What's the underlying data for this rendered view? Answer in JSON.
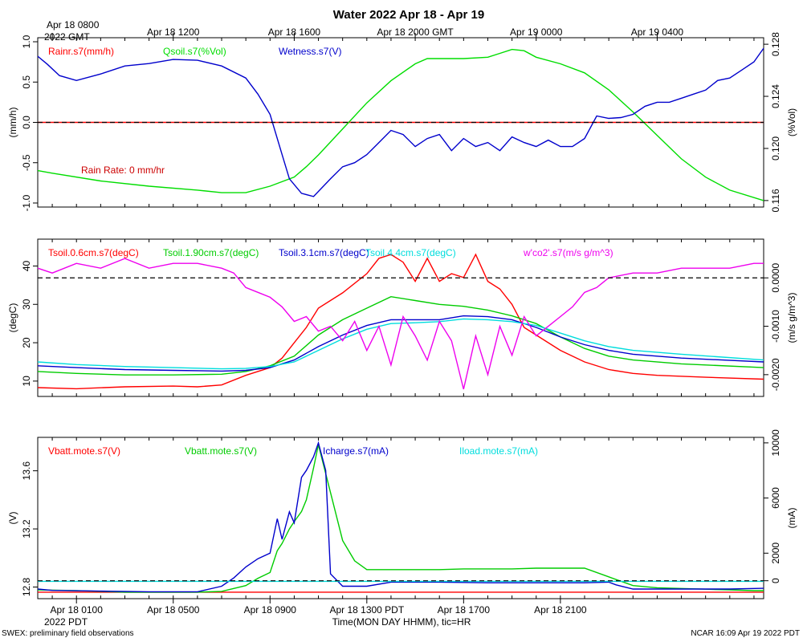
{
  "chart_data": {
    "type": "line",
    "title": "Water 2022 Apr 18 - Apr 19",
    "x_unit": "hours since Apr 18 0000 PDT",
    "x_range": [
      -0.6,
      29.4
    ],
    "top_axis": {
      "first_label": [
        "Apr 18 0800",
        "2022 GMT"
      ],
      "ticks": [
        {
          "x": 0,
          "label": ""
        },
        {
          "x": 5,
          "label": "Apr 18 1200"
        },
        {
          "x": 10,
          "label": "Apr 18 1600"
        },
        {
          "x": 15,
          "label": "Apr 18 2000 GMT"
        },
        {
          "x": 20,
          "label": "Apr 19 0000"
        },
        {
          "x": 25,
          "label": "Apr 19 0400"
        }
      ]
    },
    "bottom_axis": {
      "label": "Time(MON DAY HHMM), tic=HR",
      "sub_label": "2022 PDT",
      "ticks": [
        {
          "x": 1,
          "label": "Apr 18 0100"
        },
        {
          "x": 5,
          "label": "Apr 18 0500"
        },
        {
          "x": 9,
          "label": "Apr 18 0900"
        },
        {
          "x": 13,
          "label": "Apr 18 1300 PDT"
        },
        {
          "x": 17,
          "label": "Apr 18 1700"
        },
        {
          "x": 21,
          "label": "Apr 18 2100"
        }
      ]
    },
    "panels": [
      {
        "id": "water",
        "left_axis": {
          "label": "(mm/h)",
          "range": [
            -1.05,
            1.05
          ],
          "ticks": [
            -1.0,
            -0.5,
            0.0,
            0.5,
            1.0
          ],
          "tick_labels": [
            "-1.0",
            "-0.5",
            "0.0",
            "0.5",
            "1.0"
          ]
        },
        "right_axis": {
          "label": "(%Vol)",
          "range": [
            0.1155,
            0.1285
          ],
          "ticks": [
            0.116,
            0.12,
            0.124,
            0.128
          ],
          "tick_labels": [
            "0.116",
            "0.120",
            "0.124",
            "0.128"
          ]
        },
        "zero_line": 0.0,
        "annotation": "Rain Rate: 0 mm/hr",
        "series": [
          {
            "name": "Rainr.s7(mm/h)",
            "color": "#ff0000",
            "axis": "left",
            "x": [
              -0.6,
              29.4
            ],
            "y": [
              0,
              0
            ]
          },
          {
            "name": "Qsoil.s7(%Vol)",
            "color": "#00dd00",
            "axis": "right",
            "x": [
              -0.6,
              0,
              2,
              4,
              6,
              7,
              8,
              9,
              10,
              10.5,
              11,
              12,
              13,
              14,
              15,
              15.5,
              16,
              17,
              18,
              18.5,
              19,
              19.5,
              20,
              21,
              22,
              23,
              24,
              25,
              26,
              27,
              28,
              29.4
            ],
            "y": [
              0.1183,
              0.1181,
              0.1175,
              0.1171,
              0.1168,
              0.1166,
              0.1166,
              0.1171,
              0.1178,
              0.1186,
              0.1195,
              0.1215,
              0.1235,
              0.1252,
              0.1265,
              0.1269,
              0.1269,
              0.1269,
              0.127,
              0.1273,
              0.1276,
              0.1275,
              0.127,
              0.1265,
              0.1258,
              0.1245,
              0.1228,
              0.121,
              0.1192,
              0.1178,
              0.1168,
              0.116
            ]
          },
          {
            "name": "Wetness.s7(V)",
            "color": "#0000cc",
            "axis": "left",
            "x": [
              -0.6,
              -0.2,
              0.3,
              1,
              2,
              3,
              4,
              5,
              6,
              7,
              8,
              8.5,
              9,
              9.5,
              9.8,
              10.3,
              10.8,
              11.5,
              12,
              12.5,
              13,
              13.5,
              14,
              14.5,
              15,
              15.5,
              16,
              16.5,
              17,
              17.5,
              18,
              18.5,
              19,
              19.5,
              20,
              20.5,
              21,
              21.5,
              22,
              22.5,
              23,
              23.5,
              24,
              24.5,
              25,
              25.5,
              26,
              26.5,
              27,
              27.5,
              28,
              28.5,
              29,
              29.4
            ],
            "y": [
              0.82,
              0.72,
              0.58,
              0.52,
              0.6,
              0.7,
              0.73,
              0.78,
              0.77,
              0.7,
              0.55,
              0.35,
              0.1,
              -0.4,
              -0.7,
              -0.88,
              -0.92,
              -0.7,
              -0.55,
              -0.5,
              -0.4,
              -0.25,
              -0.1,
              -0.15,
              -0.3,
              -0.2,
              -0.15,
              -0.35,
              -0.2,
              -0.3,
              -0.25,
              -0.35,
              -0.18,
              -0.25,
              -0.3,
              -0.22,
              -0.3,
              -0.3,
              -0.2,
              0.08,
              0.05,
              0.06,
              0.1,
              0.2,
              0.25,
              0.25,
              0.3,
              0.35,
              0.4,
              0.52,
              0.55,
              0.65,
              0.75,
              0.92
            ]
          }
        ]
      },
      {
        "id": "tsoil",
        "left_axis": {
          "label": "(degC)",
          "range": [
            6,
            47
          ],
          "ticks": [
            10,
            20,
            30,
            40
          ],
          "tick_labels": [
            "10",
            "20",
            "30",
            "40"
          ]
        },
        "right_axis": {
          "label": "(m/s g/m^3)",
          "range": [
            -0.00245,
            0.0008
          ],
          "ticks": [
            -0.002,
            -0.001,
            0.0
          ],
          "tick_labels": [
            "-0.0020",
            "-0.0010",
            "0.0000"
          ]
        },
        "zero_line": 0.0,
        "series": [
          {
            "name": "Tsoil.0.6cm.s7(degC)",
            "color": "#ff0000",
            "axis": "left",
            "x": [
              -0.6,
              1,
              3,
              5,
              6,
              7,
              8,
              9,
              9.5,
              10,
              10.5,
              11,
              12,
              13,
              13.5,
              14,
              14.5,
              15,
              15.5,
              16,
              16.5,
              17,
              17.5,
              18,
              18.5,
              19,
              19.5,
              20,
              21,
              22,
              23,
              24,
              25,
              27,
              29.4
            ],
            "y": [
              8.3,
              8.0,
              8.5,
              8.7,
              8.5,
              9.0,
              11.5,
              13.5,
              16,
              20,
              24,
              29,
              33,
              38,
              42,
              43,
              41,
              36,
              42,
              36,
              38,
              37,
              43,
              36,
              34,
              30,
              24,
              22,
              18,
              15,
              13,
              12,
              11.5,
              11.0,
              10.5
            ]
          },
          {
            "name": "Tsoil.1.90cm.s7(degC)",
            "color": "#00cc00",
            "axis": "left",
            "x": [
              -0.6,
              1,
              3,
              5,
              7,
              8,
              9,
              10,
              11,
              12,
              13,
              14,
              15,
              16,
              17,
              18,
              19,
              20,
              21,
              22,
              23,
              24,
              26,
              29.4
            ],
            "y": [
              12.5,
              12,
              11.6,
              11.6,
              11.8,
              12.5,
              14,
              16.5,
              22,
              26,
              29,
              32,
              31,
              30,
              29.5,
              28.5,
              27,
              25,
              21.5,
              18.5,
              16.5,
              15.5,
              14.5,
              13.5
            ]
          },
          {
            "name": "Tsoil.3.1cm.s7(degC)",
            "color": "#0000cc",
            "axis": "left",
            "x": [
              -0.6,
              1,
              3,
              5,
              7,
              8,
              9,
              10,
              11,
              12,
              13,
              14,
              15,
              16,
              17,
              18,
              19,
              20,
              21,
              22,
              23,
              24,
              26,
              29.4
            ],
            "y": [
              14,
              13.5,
              13,
              12.8,
              12.6,
              12.8,
              13.5,
              15.5,
              19,
              22,
              24.5,
              26,
              26,
              26,
              27,
              26.8,
              26,
              24,
              21.5,
              19.5,
              18,
              17,
              16,
              15
            ]
          },
          {
            "name": "Tsoil.4.4cm.s7(degC)",
            "color": "#00dddd",
            "axis": "left",
            "x": [
              -0.6,
              1,
              3,
              5,
              7,
              8,
              9,
              10,
              11,
              12,
              13,
              14,
              15,
              16,
              17,
              18,
              19,
              20,
              21,
              22,
              23,
              24,
              26,
              29.4
            ],
            "y": [
              15,
              14.3,
              13.8,
              13.5,
              13.2,
              13.3,
              13.8,
              15,
              18,
              21,
              23.5,
              25,
              25.2,
              25.5,
              26.2,
              26,
              25.5,
              24.5,
              22.5,
              20.5,
              19,
              18,
              17,
              15.5
            ]
          },
          {
            "name": "w'co2'.s7(m/s g/m^3)",
            "color": "#ee00ee",
            "axis": "right",
            "x": [
              -0.6,
              0,
              1,
              2,
              3,
              4,
              5,
              6,
              7,
              7.5,
              8,
              8.5,
              9,
              9.5,
              10,
              10.5,
              11,
              11.5,
              12,
              12.5,
              13,
              13.5,
              14,
              14.5,
              15,
              15.5,
              16,
              16.5,
              17,
              17.5,
              18,
              18.5,
              19,
              19.5,
              20,
              20.5,
              21,
              21.5,
              22,
              22.5,
              23,
              24,
              25,
              26,
              27,
              28,
              29,
              29.4
            ],
            "y": [
              0.0002,
              0.0001,
              0.0003,
              0.0002,
              0.0004,
              0.0002,
              0.0003,
              0.0003,
              0.0002,
              0.0001,
              -0.0002,
              -0.0003,
              -0.0004,
              -0.0006,
              -0.0009,
              -0.0008,
              -0.0011,
              -0.001,
              -0.0013,
              -0.0009,
              -0.0015,
              -0.001,
              -0.0018,
              -0.0008,
              -0.0012,
              -0.0017,
              -0.0009,
              -0.0013,
              -0.0023,
              -0.0012,
              -0.002,
              -0.001,
              -0.0016,
              -0.0008,
              -0.0012,
              -0.001,
              -0.0008,
              -0.0006,
              -0.0003,
              -0.0002,
              0.0,
              0.0001,
              0.0001,
              0.0002,
              0.0002,
              0.0002,
              0.0003,
              0.0003
            ]
          }
        ]
      },
      {
        "id": "power",
        "left_axis": {
          "label": "(V)",
          "range": [
            12.72,
            13.83
          ],
          "ticks": [
            12.8,
            13.2,
            13.6
          ],
          "tick_labels": [
            "12.8",
            "13.2",
            "13.6"
          ]
        },
        "right_axis": {
          "label": "(mA)",
          "range": [
            -1300,
            10400
          ],
          "ticks": [
            0,
            2000,
            6000,
            10000
          ],
          "tick_labels": [
            "0",
            "2000",
            "6000",
            "10000"
          ]
        },
        "zero_line": 0,
        "series": [
          {
            "name": "Vbatt.mote.s7(V)",
            "color": "#ff0000",
            "axis": "left",
            "x": [
              -0.6,
              29.4
            ],
            "y": [
              12.765,
              12.765
            ]
          },
          {
            "name": "Vbatt.mote.s7(V)",
            "color": "#00cc00",
            "axis": "left",
            "x": [
              -0.6,
              1,
              2,
              3,
              4,
              5,
              6,
              7,
              7.5,
              8,
              8.5,
              9,
              9.3,
              9.5,
              9.8,
              10,
              10.3,
              10.5,
              10.8,
              11,
              11.5,
              12,
              12.5,
              13,
              14,
              15,
              16,
              17,
              18,
              19,
              20,
              21,
              22,
              23,
              24,
              25,
              26,
              27,
              28,
              29,
              29.4
            ],
            "y": [
              12.78,
              12.775,
              12.77,
              12.765,
              12.765,
              12.765,
              12.765,
              12.77,
              12.79,
              12.81,
              12.86,
              12.9,
              13.05,
              13.1,
              13.2,
              13.25,
              13.32,
              13.4,
              13.62,
              13.78,
              13.45,
              13.12,
              12.98,
              12.92,
              12.92,
              12.92,
              12.92,
              12.925,
              12.925,
              12.925,
              12.93,
              12.93,
              12.93,
              12.87,
              12.81,
              12.795,
              12.79,
              12.785,
              12.78,
              12.775,
              12.775
            ]
          },
          {
            "name": "Icharge.s7(mA)",
            "color": "#0000cc",
            "axis": "right",
            "x": [
              -0.6,
              0,
              2,
              4,
              6,
              7,
              7.5,
              8,
              8.5,
              9,
              9.3,
              9.5,
              9.8,
              10,
              10.3,
              10.5,
              10.8,
              11,
              11.3,
              11.5,
              12,
              13,
              14,
              16,
              18,
              20,
              22,
              23,
              23.3,
              24,
              26,
              28,
              29.4
            ],
            "y": [
              -600,
              -700,
              -750,
              -800,
              -800,
              -400,
              200,
              1000,
              1600,
              2000,
              4500,
              3000,
              5000,
              4200,
              7500,
              8000,
              9000,
              10000,
              8000,
              500,
              -400,
              -400,
              -100,
              -100,
              -150,
              -150,
              -150,
              -100,
              -300,
              -600,
              -600,
              -600,
              -550
            ]
          },
          {
            "name": "Iload.mote.s7(mA)",
            "color": "#00dddd",
            "axis": "right",
            "x": [
              -0.6,
              29.4
            ],
            "y": [
              -40,
              -40
            ]
          }
        ]
      }
    ],
    "footer_left": "SWEX: preliminary field observations",
    "footer_right": "NCAR 16:09 Apr 19 2022 PDT"
  }
}
